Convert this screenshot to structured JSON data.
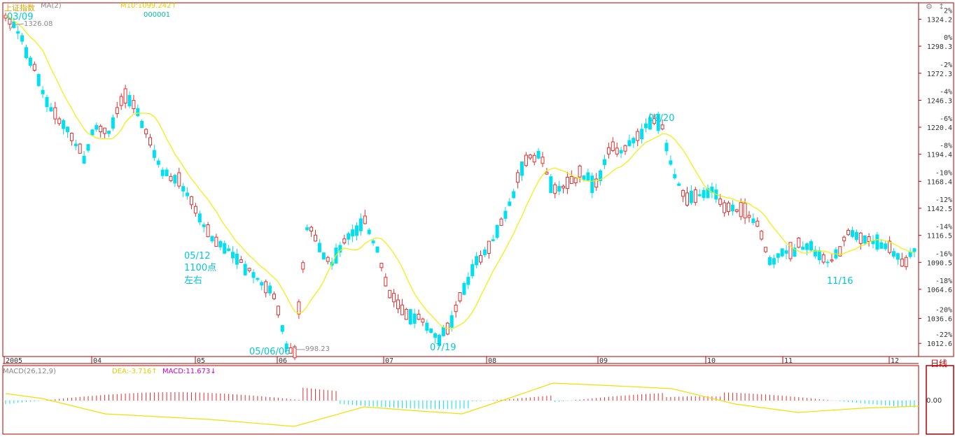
{
  "header": {
    "index_name": "上证指数",
    "indicator": "MA(2)",
    "ma_label": "M10:1099.242↑",
    "code": "000001",
    "period_label": "日线"
  },
  "macd_header": {
    "params": "MACD(26,12,9)",
    "dea": "DEA:-3.716↑",
    "macd": "MACD:11.673↓"
  },
  "colors": {
    "up": "#e03030",
    "down": "#00e0f0",
    "ma": "#f0f000",
    "annotation": "#00c8d8",
    "frame": "#b00000",
    "header_name": "#e0a000",
    "dea": "#f0e000",
    "macd": "#d000d0"
  },
  "annotations": {
    "peak_start": "03/09",
    "peak_start_value": "1326.08",
    "low_may": "05/12",
    "low_may_note1": "1100点",
    "low_may_note2": "左右",
    "bottom_date": "05/06/06",
    "bottom_value": "998.23",
    "low_jul": "07/19",
    "peak_sep": "09/20",
    "low_nov": "11/16"
  },
  "chart_data": {
    "type": "candlestick",
    "title": "上证指数",
    "y_ticks_price": [
      "1324.2",
      "1298.3",
      "1272.3",
      "1246.3",
      "1220.4",
      "1194.4",
      "1168.4",
      "1142.5",
      "1116.5",
      "1090.5",
      "1064.6",
      "1036.6",
      "1012.6"
    ],
    "y_ticks_pct": [
      "2%",
      "0%",
      "-2%",
      "-4%",
      "-6%",
      "-8%",
      "-10%",
      "-12%",
      "-14%",
      "-16%",
      "-18%",
      "-20%",
      "-22%"
    ],
    "x_ticks": [
      "2005",
      "04",
      "05",
      "06",
      "07",
      "08",
      "09",
      "10",
      "11",
      "12"
    ],
    "ylim": [
      998.23,
      1326.08
    ],
    "key_points": [
      {
        "date": "03/09",
        "value": 1326.08
      },
      {
        "date": "05/06/06",
        "value": 998.23
      }
    ],
    "macd_zero_label": "0.00",
    "series": [
      {
        "name": "MA(2)",
        "values": "computed"
      }
    ]
  }
}
